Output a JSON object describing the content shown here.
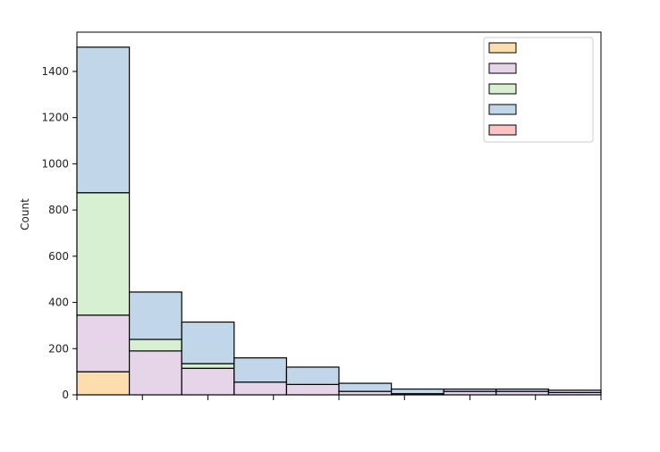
{
  "chart_data": {
    "type": "bar",
    "stacked": true,
    "ylabel": "Count",
    "ylim": [
      0,
      1570
    ],
    "yticks": [
      0,
      200,
      400,
      600,
      800,
      1000,
      1200,
      1400
    ],
    "bins": 10,
    "series": [
      {
        "color": "#fddcad",
        "values": [
          100,
          0,
          0,
          0,
          0,
          0,
          0,
          0,
          0,
          0
        ]
      },
      {
        "color": "#e6d5e8",
        "values": [
          245,
          190,
          115,
          55,
          45,
          15,
          5,
          15,
          15,
          10
        ]
      },
      {
        "color": "#d8f0d2",
        "values": [
          530,
          50,
          20,
          0,
          0,
          0,
          0,
          0,
          0,
          0
        ]
      },
      {
        "color": "#c2d6ea",
        "values": [
          630,
          205,
          180,
          105,
          75,
          35,
          20,
          10,
          10,
          10
        ]
      },
      {
        "color": "#ffc2c2",
        "values": [
          0,
          0,
          0,
          0,
          0,
          0,
          0,
          0,
          0,
          0
        ]
      }
    ],
    "legend": {
      "placement": "top-right"
    },
    "grid": false
  }
}
